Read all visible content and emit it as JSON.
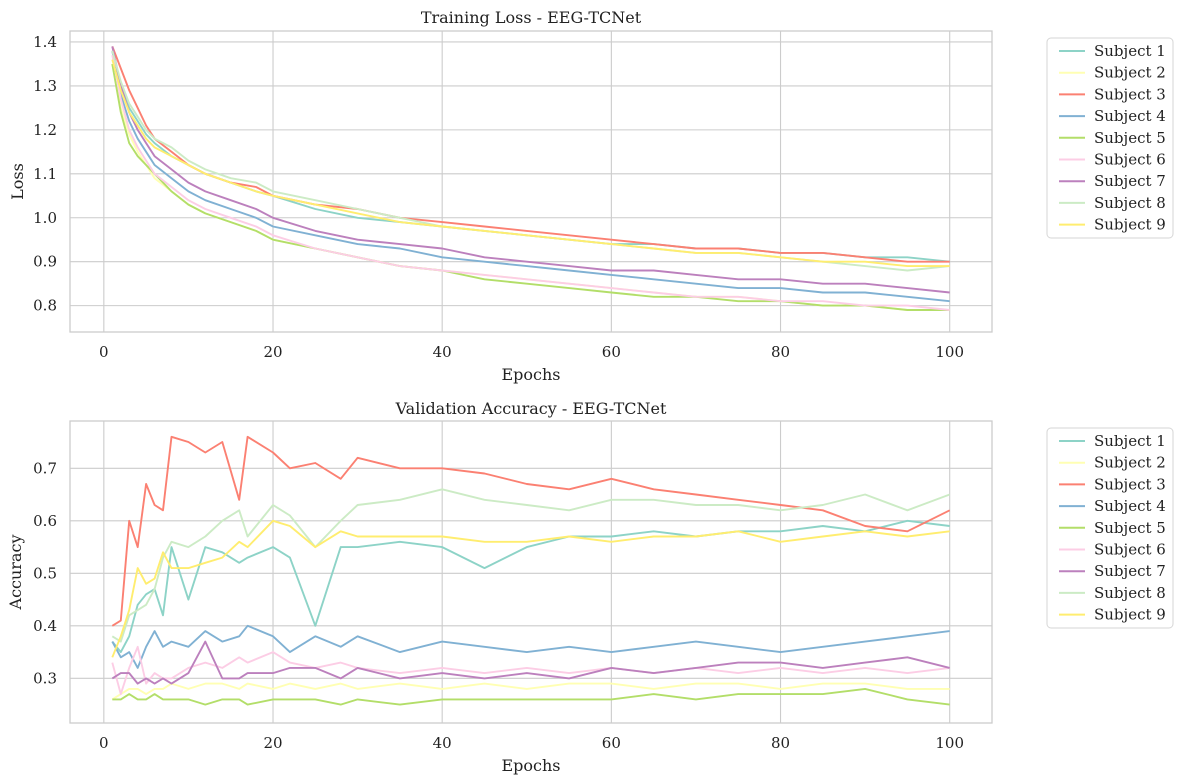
{
  "chart_data": [
    {
      "type": "line",
      "title": "Training Loss - EEG-TCNet",
      "xlabel": "Epochs",
      "ylabel": "Loss",
      "xlim": [
        -4,
        105
      ],
      "ylim": [
        0.74,
        1.425
      ],
      "xticks": [
        0,
        20,
        40,
        60,
        80,
        100
      ],
      "yticks": [
        0.8,
        0.9,
        1.0,
        1.1,
        1.2,
        1.3,
        1.4
      ],
      "ytick_labels": [
        "0.8",
        "0.9",
        "1.0",
        "1.1",
        "1.2",
        "1.3",
        "1.4"
      ],
      "grid": true,
      "legend_position": "outside-right-top",
      "x": [
        1,
        2,
        3,
        4,
        5,
        6,
        8,
        10,
        12,
        15,
        18,
        20,
        25,
        30,
        35,
        40,
        45,
        50,
        55,
        60,
        65,
        70,
        75,
        80,
        85,
        90,
        95,
        100
      ],
      "series": [
        {
          "name": "Subject 1",
          "color": "#8dd3c7",
          "values": [
            1.38,
            1.3,
            1.25,
            1.22,
            1.19,
            1.17,
            1.14,
            1.12,
            1.1,
            1.08,
            1.06,
            1.05,
            1.02,
            1.0,
            0.99,
            0.98,
            0.97,
            0.96,
            0.95,
            0.94,
            0.94,
            0.93,
            0.93,
            0.92,
            0.92,
            0.91,
            0.91,
            0.9
          ]
        },
        {
          "name": "Subject 2",
          "color": "#ffffb3",
          "values": [
            1.35,
            1.25,
            1.19,
            1.15,
            1.12,
            1.09,
            1.06,
            1.03,
            1.01,
            0.99,
            0.97,
            0.95,
            0.93,
            0.91,
            0.89,
            0.88,
            0.87,
            0.86,
            0.85,
            0.84,
            0.83,
            0.82,
            0.82,
            0.81,
            0.8,
            0.8,
            0.79,
            0.79
          ]
        },
        {
          "name": "Subject 3",
          "color": "#fb8072",
          "values": [
            1.39,
            1.34,
            1.29,
            1.25,
            1.21,
            1.18,
            1.15,
            1.12,
            1.1,
            1.08,
            1.07,
            1.05,
            1.03,
            1.02,
            1.0,
            0.99,
            0.98,
            0.97,
            0.96,
            0.95,
            0.94,
            0.93,
            0.93,
            0.92,
            0.92,
            0.91,
            0.9,
            0.9
          ]
        },
        {
          "name": "Subject 4",
          "color": "#80b1d3",
          "values": [
            1.38,
            1.28,
            1.22,
            1.18,
            1.15,
            1.12,
            1.09,
            1.06,
            1.04,
            1.02,
            1.0,
            0.98,
            0.96,
            0.94,
            0.93,
            0.91,
            0.9,
            0.89,
            0.88,
            0.87,
            0.86,
            0.85,
            0.84,
            0.84,
            0.83,
            0.83,
            0.82,
            0.81
          ]
        },
        {
          "name": "Subject 5",
          "color": "#b3de69",
          "values": [
            1.35,
            1.24,
            1.17,
            1.14,
            1.12,
            1.1,
            1.06,
            1.03,
            1.01,
            0.99,
            0.97,
            0.95,
            0.93,
            0.91,
            0.89,
            0.88,
            0.86,
            0.85,
            0.84,
            0.83,
            0.82,
            0.82,
            0.81,
            0.81,
            0.8,
            0.8,
            0.79,
            0.79
          ]
        },
        {
          "name": "Subject 6",
          "color": "#fccde5",
          "values": [
            1.37,
            1.27,
            1.2,
            1.16,
            1.13,
            1.1,
            1.07,
            1.04,
            1.02,
            1.0,
            0.98,
            0.96,
            0.93,
            0.91,
            0.89,
            0.88,
            0.87,
            0.86,
            0.85,
            0.84,
            0.83,
            0.82,
            0.82,
            0.81,
            0.81,
            0.8,
            0.8,
            0.79
          ]
        },
        {
          "name": "Subject 7",
          "color": "#bc80bd",
          "values": [
            1.39,
            1.3,
            1.24,
            1.2,
            1.17,
            1.14,
            1.11,
            1.08,
            1.06,
            1.04,
            1.02,
            1.0,
            0.97,
            0.95,
            0.94,
            0.93,
            0.91,
            0.9,
            0.89,
            0.88,
            0.88,
            0.87,
            0.86,
            0.86,
            0.85,
            0.85,
            0.84,
            0.83
          ]
        },
        {
          "name": "Subject 8",
          "color": "#ccebc5",
          "values": [
            1.38,
            1.31,
            1.26,
            1.23,
            1.2,
            1.18,
            1.16,
            1.13,
            1.11,
            1.09,
            1.08,
            1.06,
            1.04,
            1.02,
            1.0,
            0.98,
            0.97,
            0.96,
            0.95,
            0.94,
            0.93,
            0.92,
            0.92,
            0.91,
            0.9,
            0.89,
            0.88,
            0.89
          ]
        },
        {
          "name": "Subject 9",
          "color": "#ffed6f",
          "values": [
            1.36,
            1.29,
            1.24,
            1.21,
            1.18,
            1.16,
            1.14,
            1.12,
            1.1,
            1.08,
            1.06,
            1.05,
            1.03,
            1.01,
            0.99,
            0.98,
            0.97,
            0.96,
            0.95,
            0.94,
            0.93,
            0.92,
            0.92,
            0.91,
            0.9,
            0.9,
            0.89,
            0.89
          ]
        }
      ]
    },
    {
      "type": "line",
      "title": "Validation Accuracy - EEG-TCNet",
      "xlabel": "Epochs",
      "ylabel": "Accuracy",
      "xlim": [
        -4,
        105
      ],
      "ylim": [
        0.215,
        0.79
      ],
      "xticks": [
        0,
        20,
        40,
        60,
        80,
        100
      ],
      "yticks": [
        0.3,
        0.4,
        0.5,
        0.6,
        0.7
      ],
      "ytick_labels": [
        "0.3",
        "0.4",
        "0.5",
        "0.6",
        "0.7"
      ],
      "grid": true,
      "legend_position": "outside-right-top",
      "x": [
        1,
        2,
        3,
        4,
        5,
        6,
        7,
        8,
        10,
        12,
        14,
        16,
        17,
        20,
        22,
        25,
        28,
        30,
        35,
        40,
        45,
        50,
        55,
        60,
        65,
        70,
        75,
        80,
        85,
        90,
        95,
        100
      ],
      "series": [
        {
          "name": "Subject 1",
          "color": "#8dd3c7",
          "values": [
            0.37,
            0.35,
            0.38,
            0.44,
            0.46,
            0.47,
            0.42,
            0.55,
            0.45,
            0.55,
            0.54,
            0.52,
            0.53,
            0.55,
            0.53,
            0.4,
            0.55,
            0.55,
            0.56,
            0.55,
            0.51,
            0.55,
            0.57,
            0.57,
            0.58,
            0.57,
            0.58,
            0.58,
            0.59,
            0.58,
            0.6,
            0.59
          ]
        },
        {
          "name": "Subject 2",
          "color": "#ffffb3",
          "values": [
            0.26,
            0.27,
            0.28,
            0.28,
            0.27,
            0.28,
            0.28,
            0.29,
            0.28,
            0.29,
            0.29,
            0.28,
            0.29,
            0.28,
            0.29,
            0.28,
            0.29,
            0.28,
            0.29,
            0.28,
            0.29,
            0.28,
            0.29,
            0.29,
            0.28,
            0.29,
            0.29,
            0.28,
            0.29,
            0.29,
            0.28,
            0.28
          ]
        },
        {
          "name": "Subject 3",
          "color": "#fb8072",
          "values": [
            0.4,
            0.41,
            0.6,
            0.55,
            0.67,
            0.63,
            0.62,
            0.76,
            0.75,
            0.73,
            0.75,
            0.64,
            0.76,
            0.73,
            0.7,
            0.71,
            0.68,
            0.72,
            0.7,
            0.7,
            0.69,
            0.67,
            0.66,
            0.68,
            0.66,
            0.65,
            0.64,
            0.63,
            0.62,
            0.59,
            0.58,
            0.62
          ]
        },
        {
          "name": "Subject 4",
          "color": "#80b1d3",
          "values": [
            0.37,
            0.34,
            0.35,
            0.32,
            0.36,
            0.39,
            0.36,
            0.37,
            0.36,
            0.39,
            0.37,
            0.38,
            0.4,
            0.38,
            0.35,
            0.38,
            0.36,
            0.38,
            0.35,
            0.37,
            0.36,
            0.35,
            0.36,
            0.35,
            0.36,
            0.37,
            0.36,
            0.35,
            0.36,
            0.37,
            0.38,
            0.39
          ]
        },
        {
          "name": "Subject 5",
          "color": "#b3de69",
          "values": [
            0.26,
            0.26,
            0.27,
            0.26,
            0.26,
            0.27,
            0.26,
            0.26,
            0.26,
            0.25,
            0.26,
            0.26,
            0.25,
            0.26,
            0.26,
            0.26,
            0.25,
            0.26,
            0.25,
            0.26,
            0.26,
            0.26,
            0.26,
            0.26,
            0.27,
            0.26,
            0.27,
            0.27,
            0.27,
            0.28,
            0.26,
            0.25
          ]
        },
        {
          "name": "Subject 6",
          "color": "#fccde5",
          "values": [
            0.33,
            0.27,
            0.32,
            0.36,
            0.29,
            0.31,
            0.3,
            0.3,
            0.32,
            0.33,
            0.32,
            0.34,
            0.33,
            0.35,
            0.33,
            0.32,
            0.33,
            0.32,
            0.31,
            0.32,
            0.31,
            0.32,
            0.31,
            0.32,
            0.31,
            0.32,
            0.31,
            0.32,
            0.31,
            0.32,
            0.31,
            0.32
          ]
        },
        {
          "name": "Subject 7",
          "color": "#bc80bd",
          "values": [
            0.3,
            0.31,
            0.31,
            0.29,
            0.3,
            0.29,
            0.3,
            0.29,
            0.31,
            0.37,
            0.3,
            0.3,
            0.31,
            0.31,
            0.32,
            0.32,
            0.3,
            0.32,
            0.3,
            0.31,
            0.3,
            0.31,
            0.3,
            0.32,
            0.31,
            0.32,
            0.33,
            0.33,
            0.32,
            0.33,
            0.34,
            0.32
          ]
        },
        {
          "name": "Subject 8",
          "color": "#ccebc5",
          "values": [
            0.38,
            0.37,
            0.42,
            0.43,
            0.44,
            0.47,
            0.53,
            0.56,
            0.55,
            0.57,
            0.6,
            0.62,
            0.57,
            0.63,
            0.61,
            0.55,
            0.6,
            0.63,
            0.64,
            0.66,
            0.64,
            0.63,
            0.62,
            0.64,
            0.64,
            0.63,
            0.63,
            0.62,
            0.63,
            0.65,
            0.62,
            0.65
          ]
        },
        {
          "name": "Subject 9",
          "color": "#ffed6f",
          "values": [
            0.34,
            0.38,
            0.43,
            0.51,
            0.48,
            0.49,
            0.54,
            0.51,
            0.51,
            0.52,
            0.53,
            0.56,
            0.55,
            0.6,
            0.59,
            0.55,
            0.58,
            0.57,
            0.57,
            0.57,
            0.56,
            0.56,
            0.57,
            0.56,
            0.57,
            0.57,
            0.58,
            0.56,
            0.57,
            0.58,
            0.57,
            0.58
          ]
        }
      ]
    }
  ]
}
